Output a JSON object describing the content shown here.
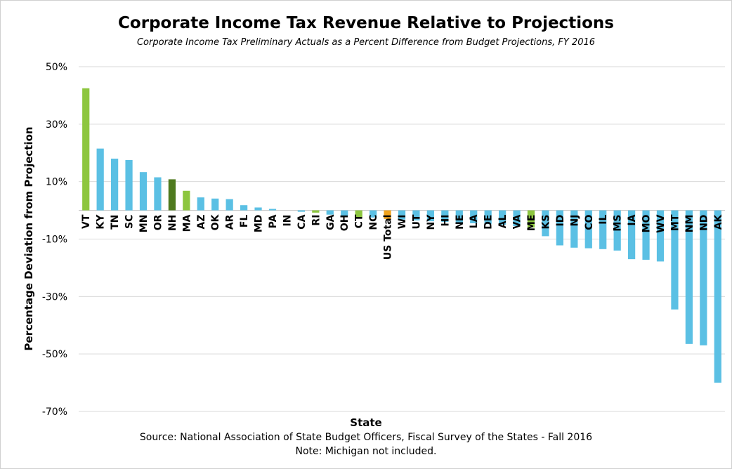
{
  "title": "Corporate Income Tax Revenue Relative to Projections",
  "subtitle": "Corporate Income Tax Preliminary Actuals as a Percent Difference from Budget Projections, FY 2016",
  "source": "Source: National Association of State Budget Officers, Fiscal Survey of the States - Fall 2016",
  "note": "Note: Michigan not included.",
  "colors": {
    "default": "#5BC0E4",
    "light_green": "#8DC63F",
    "dark_green": "#4F7A1F",
    "us_total": "#F0A31E",
    "gridline": "#d9d9d9"
  },
  "chart_data": {
    "type": "bar",
    "xlabel": "State",
    "ylabel": "Percentage Deviation from Projection",
    "ylim": [
      -70,
      50
    ],
    "yticks": [
      "50%",
      "30%",
      "10%",
      "-10%",
      "-30%",
      "-50%",
      "-70%"
    ],
    "ytick_values": [
      50,
      30,
      10,
      -10,
      -30,
      -50,
      -70
    ],
    "grid": true,
    "categories": [
      "VT",
      "KY",
      "TN",
      "SC",
      "MN",
      "OR",
      "NH",
      "MA",
      "AZ",
      "OK",
      "AR",
      "FL",
      "MD",
      "PA",
      "IN",
      "CA",
      "RI",
      "GA",
      "OH",
      "CT",
      "NC",
      "US Total",
      "WI",
      "UT",
      "NY",
      "HI",
      "NE",
      "LA",
      "DE",
      "AL",
      "VA",
      "ME",
      "KS",
      "ID",
      "NJ",
      "CO",
      "IL",
      "MS",
      "IA",
      "MO",
      "WV",
      "MT",
      "NM",
      "ND",
      "AK"
    ],
    "values": [
      42.5,
      21.5,
      18,
      17.5,
      13.3,
      11.5,
      10.8,
      6.8,
      4.5,
      4.1,
      3.9,
      1.8,
      1.0,
      0.5,
      0,
      -0.5,
      -0.8,
      -1.5,
      -2.0,
      -2.5,
      -2.5,
      -3.0,
      -3.2,
      -3.5,
      -3.8,
      -4.0,
      -4.2,
      -4.5,
      -4.8,
      -5.0,
      -5.5,
      -6.0,
      -9.0,
      -12.2,
      -13.0,
      -13.2,
      -13.5,
      -14.0,
      -17.0,
      -17.2,
      -17.8,
      -34.5,
      -46.5,
      -47.0,
      -60.0
    ],
    "bar_colors": [
      "light_green",
      "default",
      "default",
      "default",
      "default",
      "default",
      "dark_green",
      "light_green",
      "default",
      "default",
      "default",
      "default",
      "default",
      "default",
      "default",
      "default",
      "light_green",
      "default",
      "default",
      "light_green",
      "default",
      "us_total",
      "default",
      "default",
      "default",
      "default",
      "default",
      "default",
      "default",
      "default",
      "default",
      "light_green",
      "default",
      "default",
      "default",
      "default",
      "default",
      "default",
      "default",
      "default",
      "default",
      "default",
      "default",
      "default",
      "default"
    ]
  }
}
